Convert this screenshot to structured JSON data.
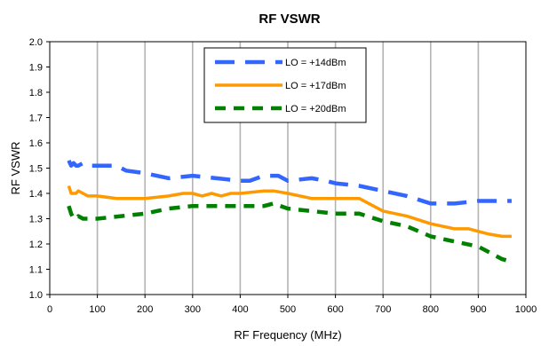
{
  "chart_data": {
    "type": "line",
    "title": "RF VSWR",
    "xlabel": "RF Frequency (MHz)",
    "ylabel": "RF VSWR",
    "xlim": [
      0,
      1000
    ],
    "ylim": [
      1.0,
      2.0
    ],
    "xticks": [
      "0",
      "100",
      "200",
      "300",
      "400",
      "500",
      "600",
      "700",
      "800",
      "900",
      "1000"
    ],
    "yticks": [
      "1.0",
      "1.1",
      "1.2",
      "1.3",
      "1.4",
      "1.5",
      "1.6",
      "1.7",
      "1.8",
      "1.9",
      "2.0"
    ],
    "grid": "vertical",
    "legend_position": "top-center",
    "series": [
      {
        "name": "LO = +14dBm",
        "color": "#3366ff",
        "style": "long-dash",
        "x": [
          40,
          45,
          50,
          55,
          60,
          70,
          80,
          100,
          120,
          140,
          160,
          200,
          250,
          300,
          350,
          400,
          420,
          450,
          480,
          500,
          550,
          580,
          600,
          650,
          700,
          750,
          800,
          850,
          900,
          950,
          970
        ],
        "y": [
          1.53,
          1.51,
          1.52,
          1.51,
          1.51,
          1.52,
          1.51,
          1.51,
          1.51,
          1.51,
          1.49,
          1.48,
          1.46,
          1.47,
          1.46,
          1.45,
          1.45,
          1.47,
          1.47,
          1.45,
          1.46,
          1.45,
          1.44,
          1.43,
          1.41,
          1.39,
          1.36,
          1.36,
          1.37,
          1.37,
          1.37
        ]
      },
      {
        "name": "LO = +17dBm",
        "color": "#ff9900",
        "style": "solid",
        "x": [
          40,
          45,
          50,
          55,
          60,
          70,
          80,
          90,
          100,
          140,
          160,
          200,
          250,
          280,
          300,
          320,
          340,
          360,
          380,
          400,
          450,
          470,
          500,
          550,
          600,
          650,
          700,
          750,
          800,
          850,
          880,
          900,
          920,
          950,
          970
        ],
        "y": [
          1.43,
          1.4,
          1.4,
          1.4,
          1.41,
          1.4,
          1.39,
          1.39,
          1.39,
          1.38,
          1.38,
          1.38,
          1.39,
          1.4,
          1.4,
          1.39,
          1.4,
          1.39,
          1.4,
          1.4,
          1.41,
          1.41,
          1.4,
          1.38,
          1.38,
          1.38,
          1.33,
          1.31,
          1.28,
          1.26,
          1.26,
          1.25,
          1.24,
          1.23,
          1.23
        ]
      },
      {
        "name": "LO = +20dBm",
        "color": "#008000",
        "style": "dash",
        "x": [
          40,
          45,
          50,
          55,
          60,
          70,
          80,
          100,
          150,
          200,
          250,
          300,
          350,
          400,
          450,
          470,
          500,
          550,
          600,
          650,
          700,
          750,
          800,
          850,
          900,
          950,
          970
        ],
        "y": [
          1.35,
          1.32,
          1.3,
          1.3,
          1.31,
          1.3,
          1.3,
          1.3,
          1.31,
          1.32,
          1.34,
          1.35,
          1.35,
          1.35,
          1.35,
          1.36,
          1.34,
          1.33,
          1.32,
          1.32,
          1.29,
          1.27,
          1.23,
          1.21,
          1.19,
          1.14,
          1.13
        ]
      }
    ]
  }
}
